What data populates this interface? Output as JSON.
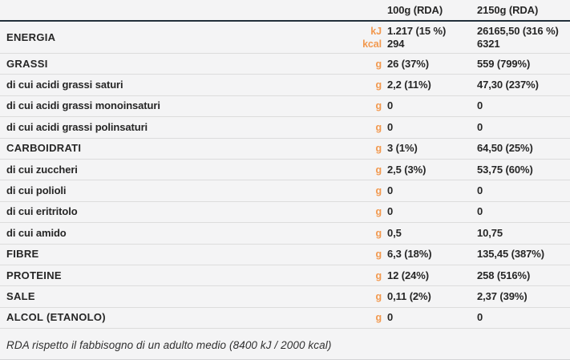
{
  "accent_color": "#f2994f",
  "header_rule_color": "#222f3a",
  "columns": {
    "col1": "100g (RDA)",
    "col2": "2150g (RDA)"
  },
  "table": {
    "rows": [
      {
        "label": "ENERGIA",
        "units": [
          "kJ",
          "kcal"
        ],
        "per100g": [
          "1.217 (15 %)",
          "294"
        ],
        "per2150g": [
          "26165,50 (316 %)",
          "6321"
        ]
      },
      {
        "label": "GRASSI",
        "unit": "g",
        "per100g": "26 (37%)",
        "per2150g": "559 (799%)"
      },
      {
        "label": "di cui acidi grassi saturi",
        "unit": "g",
        "per100g": "2,2 (11%)",
        "per2150g": "47,30  (237%)"
      },
      {
        "label": "di cui acidi grassi monoinsaturi",
        "unit": "g",
        "per100g": "0",
        "per2150g": "0"
      },
      {
        "label": "di cui acidi grassi polinsaturi",
        "unit": "g",
        "per100g": "0",
        "per2150g": "0"
      },
      {
        "label": "CARBOIDRATI",
        "unit": "g",
        "per100g": "3 (1%)",
        "per2150g": "64,50 (25%)"
      },
      {
        "label": "di cui zuccheri",
        "unit": "g",
        "per100g": "2,5 (3%)",
        "per2150g": "53,75 (60%)"
      },
      {
        "label": "di cui polioli",
        "unit": "g",
        "per100g": "0",
        "per2150g": "0"
      },
      {
        "label": "di cui eritritolo",
        "unit": "g",
        "per100g": "0",
        "per2150g": "0"
      },
      {
        "label": "di cui amido",
        "unit": "g",
        "per100g": "0,5",
        "per2150g": "10,75"
      },
      {
        "label": "FIBRE",
        "unit": "g",
        "per100g": "6,3 (18%)",
        "per2150g": "135,45 (387%)"
      },
      {
        "label": "PROTEINE",
        "unit": "g",
        "per100g": "12 (24%)",
        "per2150g": "258 (516%)"
      },
      {
        "label": "SALE",
        "unit": "g",
        "per100g": "0,11 (2%)",
        "per2150g": "2,37 (39%)"
      },
      {
        "label": "ALCOL (ETANOLO)",
        "unit": "g",
        "per100g": "0",
        "per2150g": "0"
      }
    ]
  },
  "footer": {
    "note": "RDA rispetto il fabbisogno di un adulto medio (8400 kJ / 2000 kcal)"
  }
}
